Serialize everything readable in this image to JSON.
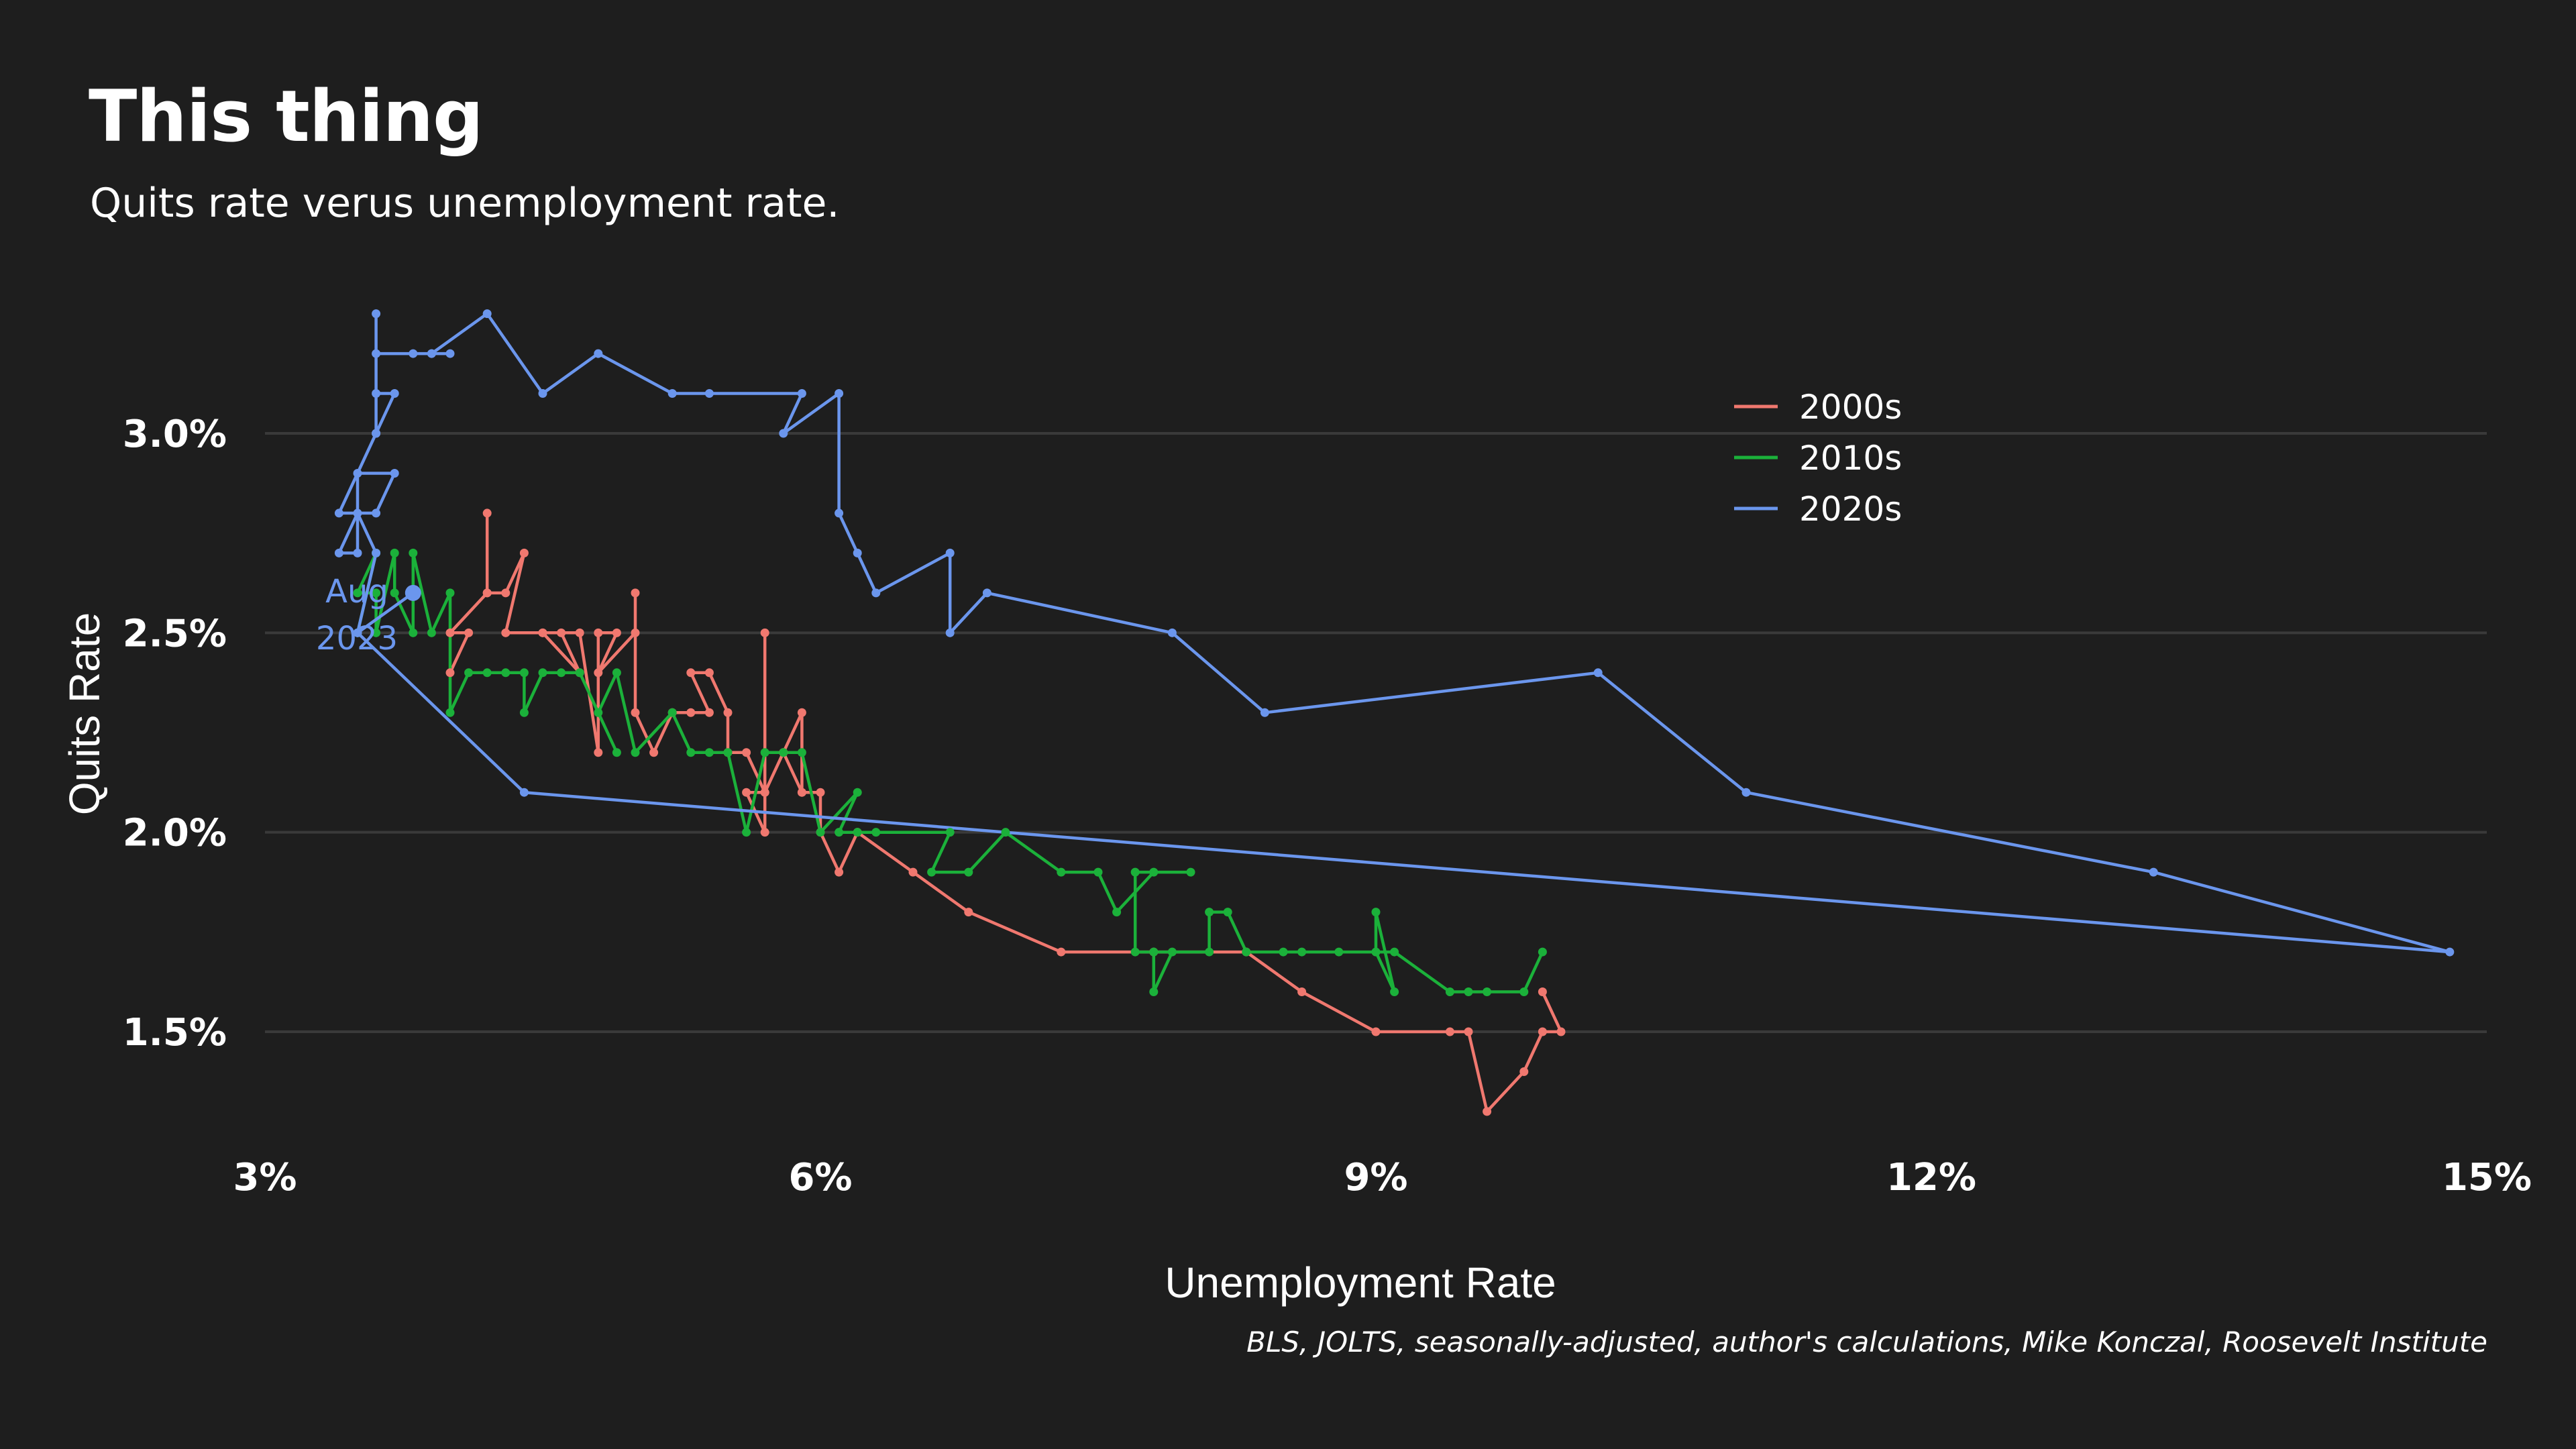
{
  "title": "This thing",
  "subtitle": "Quits rate verus unemployment rate.",
  "caption": "BLS, JOLTS, seasonally-adjusted, author's calculations, Mike Konczal, Roosevelt Institute",
  "chart_data": {
    "type": "line",
    "xlabel": "Unemployment Rate",
    "ylabel": "Quits Rate",
    "xlim": [
      3.0,
      15.0
    ],
    "ylim": [
      1.2,
      3.35
    ],
    "xticks": [
      3,
      6,
      9,
      12,
      15
    ],
    "xtick_labels": [
      "3%",
      "6%",
      "9%",
      "12%",
      "15%"
    ],
    "yticks": [
      1.5,
      2.0,
      2.5,
      3.0
    ],
    "ytick_labels": [
      "1.5%",
      "2.0%",
      "2.5%",
      "3.0%"
    ],
    "grid": "horizontal",
    "legend_position": "top-right",
    "series": [
      {
        "name": "2000s",
        "color": "#f0786f",
        "points": [
          [
            4.0,
            2.4
          ],
          [
            4.1,
            2.5
          ],
          [
            4.0,
            2.5
          ],
          [
            4.2,
            2.6
          ],
          [
            4.2,
            2.8
          ],
          [
            4.2,
            2.6
          ],
          [
            4.3,
            2.6
          ],
          [
            4.4,
            2.7
          ],
          [
            4.3,
            2.5
          ],
          [
            4.5,
            2.5
          ],
          [
            4.6,
            2.5
          ],
          [
            4.7,
            2.4
          ],
          [
            4.5,
            2.5
          ],
          [
            4.7,
            2.5
          ],
          [
            4.8,
            2.2
          ],
          [
            4.8,
            2.5
          ],
          [
            4.9,
            2.5
          ],
          [
            4.8,
            2.4
          ],
          [
            5.0,
            2.5
          ],
          [
            5.0,
            2.6
          ],
          [
            5.0,
            2.3
          ],
          [
            5.1,
            2.2
          ],
          [
            5.2,
            2.3
          ],
          [
            5.3,
            2.3
          ],
          [
            5.4,
            2.3
          ],
          [
            5.3,
            2.4
          ],
          [
            5.4,
            2.4
          ],
          [
            5.5,
            2.3
          ],
          [
            5.5,
            2.2
          ],
          [
            5.6,
            2.2
          ],
          [
            5.7,
            2.1
          ],
          [
            5.6,
            2.1
          ],
          [
            5.7,
            2.0
          ],
          [
            5.7,
            2.5
          ],
          [
            5.7,
            2.1
          ],
          [
            5.8,
            2.2
          ],
          [
            5.9,
            2.1
          ],
          [
            5.9,
            2.3
          ],
          [
            5.8,
            2.2
          ],
          [
            5.9,
            2.1
          ],
          [
            6.0,
            2.1
          ],
          [
            6.0,
            2.0
          ],
          [
            6.1,
            1.9
          ],
          [
            6.2,
            2.0
          ],
          [
            6.5,
            1.9
          ],
          [
            6.8,
            1.8
          ],
          [
            7.3,
            1.7
          ],
          [
            7.8,
            1.7
          ],
          [
            8.3,
            1.7
          ],
          [
            8.6,
            1.6
          ],
          [
            9.0,
            1.5
          ],
          [
            9.4,
            1.5
          ],
          [
            9.5,
            1.5
          ],
          [
            9.6,
            1.3
          ],
          [
            9.8,
            1.4
          ],
          [
            9.9,
            1.5
          ],
          [
            10.0,
            1.5
          ],
          [
            9.9,
            1.6
          ]
        ]
      },
      {
        "name": "2010s",
        "color": "#1bb13a",
        "points": [
          [
            9.9,
            1.7
          ],
          [
            9.8,
            1.6
          ],
          [
            9.6,
            1.6
          ],
          [
            9.5,
            1.6
          ],
          [
            9.4,
            1.6
          ],
          [
            9.1,
            1.7
          ],
          [
            9.0,
            1.7
          ],
          [
            9.1,
            1.6
          ],
          [
            9.0,
            1.8
          ],
          [
            9.0,
            1.7
          ],
          [
            8.8,
            1.7
          ],
          [
            8.6,
            1.7
          ],
          [
            8.5,
            1.7
          ],
          [
            8.3,
            1.7
          ],
          [
            8.2,
            1.8
          ],
          [
            8.1,
            1.8
          ],
          [
            8.1,
            1.7
          ],
          [
            7.8,
            1.7
          ],
          [
            7.8,
            1.6
          ],
          [
            7.9,
            1.7
          ],
          [
            7.7,
            1.7
          ],
          [
            7.7,
            1.9
          ],
          [
            8.0,
            1.9
          ],
          [
            7.8,
            1.9
          ],
          [
            7.6,
            1.8
          ],
          [
            7.5,
            1.9
          ],
          [
            7.3,
            1.9
          ],
          [
            7.0,
            2.0
          ],
          [
            6.8,
            1.9
          ],
          [
            6.6,
            1.9
          ],
          [
            6.7,
            2.0
          ],
          [
            6.3,
            2.0
          ],
          [
            6.2,
            2.0
          ],
          [
            6.1,
            2.0
          ],
          [
            6.2,
            2.1
          ],
          [
            6.0,
            2.0
          ],
          [
            5.9,
            2.2
          ],
          [
            5.8,
            2.2
          ],
          [
            5.7,
            2.2
          ],
          [
            5.6,
            2.0
          ],
          [
            5.5,
            2.2
          ],
          [
            5.4,
            2.2
          ],
          [
            5.3,
            2.2
          ],
          [
            5.2,
            2.3
          ],
          [
            5.0,
            2.2
          ],
          [
            4.9,
            2.4
          ],
          [
            4.8,
            2.3
          ],
          [
            4.9,
            2.2
          ],
          [
            4.7,
            2.4
          ],
          [
            4.6,
            2.4
          ],
          [
            4.5,
            2.4
          ],
          [
            4.4,
            2.3
          ],
          [
            4.4,
            2.4
          ],
          [
            4.3,
            2.4
          ],
          [
            4.2,
            2.4
          ],
          [
            4.1,
            2.4
          ],
          [
            4.0,
            2.3
          ],
          [
            4.0,
            2.6
          ],
          [
            3.9,
            2.5
          ],
          [
            3.8,
            2.7
          ],
          [
            3.8,
            2.5
          ],
          [
            3.7,
            2.6
          ],
          [
            3.7,
            2.7
          ],
          [
            3.6,
            2.5
          ],
          [
            3.6,
            2.6
          ],
          [
            3.5,
            2.6
          ],
          [
            3.6,
            2.7
          ],
          [
            3.5,
            2.5
          ]
        ]
      },
      {
        "name": "2020s",
        "color": "#6b96ed",
        "points": [
          [
            3.5,
            2.5
          ],
          [
            3.6,
            2.7
          ],
          [
            3.5,
            2.8
          ],
          [
            3.4,
            2.7
          ],
          [
            3.5,
            2.7
          ],
          [
            3.5,
            2.9
          ],
          [
            3.7,
            2.9
          ],
          [
            3.6,
            2.8
          ],
          [
            3.4,
            2.8
          ],
          [
            3.6,
            3.0
          ],
          [
            3.6,
            3.3
          ],
          [
            3.6,
            3.1
          ],
          [
            3.7,
            3.1
          ],
          [
            3.6,
            3.0
          ],
          [
            3.6,
            3.2
          ],
          [
            3.8,
            3.2
          ],
          [
            3.9,
            3.2
          ],
          [
            4.0,
            3.2
          ],
          [
            3.9,
            3.2
          ],
          [
            4.2,
            3.3
          ],
          [
            4.5,
            3.1
          ],
          [
            4.8,
            3.2
          ],
          [
            5.2,
            3.1
          ],
          [
            5.4,
            3.1
          ],
          [
            5.9,
            3.1
          ],
          [
            5.8,
            3.0
          ],
          [
            6.1,
            3.1
          ],
          [
            6.1,
            2.8
          ],
          [
            6.2,
            2.7
          ],
          [
            6.3,
            2.6
          ],
          [
            6.7,
            2.7
          ],
          [
            6.7,
            2.5
          ],
          [
            6.9,
            2.6
          ],
          [
            7.9,
            2.5
          ],
          [
            8.4,
            2.3
          ],
          [
            10.2,
            2.4
          ],
          [
            11.0,
            2.1
          ],
          [
            13.2,
            1.9
          ],
          [
            14.8,
            1.7
          ],
          [
            4.4,
            2.1
          ],
          [
            3.5,
            2.5
          ],
          [
            3.8,
            2.6
          ]
        ],
        "annotation": {
          "text_line1": "Aug",
          "text_line2": "2023",
          "x": 3.8,
          "y": 2.6
        }
      }
    ]
  }
}
